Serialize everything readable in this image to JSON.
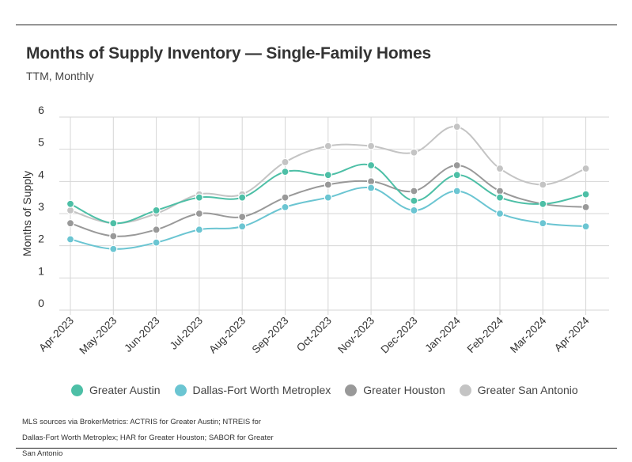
{
  "header": {
    "title": "Months of Supply Inventory — Single-Family Homes",
    "subtitle": "TTM, Monthly"
  },
  "footer": {
    "source": "MLS sources via BrokerMetrics: ACTRIS for Greater Austin; NTREIS for Dallas-Fort Worth Metroplex; HAR for Greater Houston; SABOR for Greater San Antonio"
  },
  "chart_data": {
    "type": "line",
    "title": "Months of Supply Inventory — Single-Family Homes",
    "subtitle": "TTM, Monthly",
    "xlabel": "",
    "ylabel": "Months of Supply",
    "ylim": [
      0,
      6
    ],
    "yticks": [
      0,
      1,
      2,
      3,
      4,
      5,
      6
    ],
    "grid": true,
    "legend_position": "bottom",
    "categories": [
      "Apr-2023",
      "May-2023",
      "Jun-2023",
      "Jul-2023",
      "Aug-2023",
      "Sep-2023",
      "Oct-2023",
      "Nov-2023",
      "Dec-2023",
      "Jan-2024",
      "Feb-2024",
      "Mar-2024",
      "Apr-2024"
    ],
    "series": [
      {
        "name": "Greater Austin",
        "color": "#4dbfa6",
        "values": [
          3.3,
          2.7,
          3.1,
          3.5,
          3.5,
          4.3,
          4.2,
          4.5,
          3.4,
          4.2,
          3.5,
          3.3,
          3.6
        ]
      },
      {
        "name": "Dallas-Fort Worth Metroplex",
        "color": "#6bc5d2",
        "values": [
          2.2,
          1.9,
          2.1,
          2.5,
          2.6,
          3.2,
          3.5,
          3.8,
          3.1,
          3.7,
          3.0,
          2.7,
          2.6
        ]
      },
      {
        "name": "Greater Houston",
        "color": "#999999",
        "values": [
          2.7,
          2.3,
          2.5,
          3.0,
          2.9,
          3.5,
          3.9,
          4.0,
          3.7,
          4.5,
          3.7,
          3.3,
          3.2
        ]
      },
      {
        "name": "Greater San Antonio",
        "color": "#c4c4c4",
        "values": [
          3.1,
          2.7,
          3.0,
          3.6,
          3.6,
          4.6,
          5.1,
          5.1,
          4.9,
          5.7,
          4.4,
          3.9,
          4.4
        ]
      }
    ]
  }
}
